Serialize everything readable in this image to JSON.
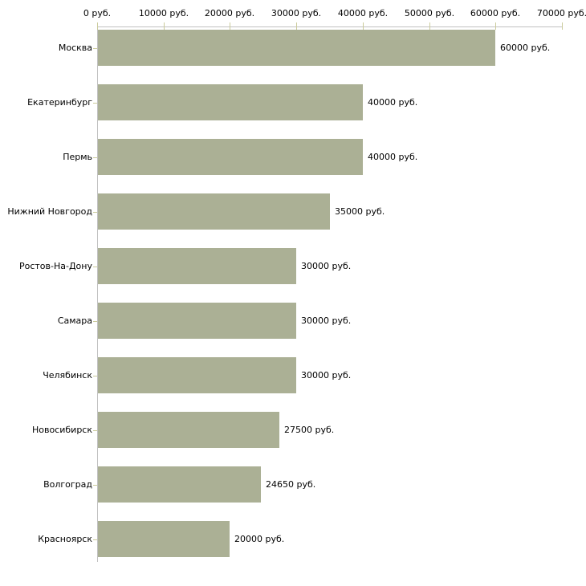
{
  "chart_data": {
    "type": "bar",
    "orientation": "horizontal",
    "title": "",
    "xlabel": "",
    "ylabel": "",
    "unit": "руб.",
    "xlim": [
      0,
      70000
    ],
    "grid": false,
    "legend": false,
    "categories": [
      "Москва",
      "Екатеринбург",
      "Пермь",
      "Нижний Новгород",
      "Ростов-На-Дону",
      "Самара",
      "Челябинск",
      "Новосибирск",
      "Волгоград",
      "Красноярск"
    ],
    "values": [
      60000,
      40000,
      40000,
      35000,
      30000,
      30000,
      30000,
      27500,
      24650,
      20000
    ],
    "value_labels": [
      "60000 руб.",
      "40000 руб.",
      "40000 руб.",
      "35000 руб.",
      "30000 руб.",
      "30000 руб.",
      "30000 руб.",
      "27500 руб.",
      "24650 руб.",
      "20000 руб."
    ],
    "x_tick_values": [
      0,
      10000,
      20000,
      30000,
      40000,
      50000,
      60000,
      70000
    ],
    "x_tick_labels": [
      "0 руб.",
      "10000 руб.",
      "20000 руб.",
      "30000 руб.",
      "40000 руб.",
      "50000 руб.",
      "60000 руб.",
      "70000 руб."
    ],
    "colors": {
      "bar": "#abb095",
      "axis": "#c0c0c0",
      "tick": "#cbcb9b",
      "text": "#000000",
      "background": "#ffffff"
    }
  }
}
